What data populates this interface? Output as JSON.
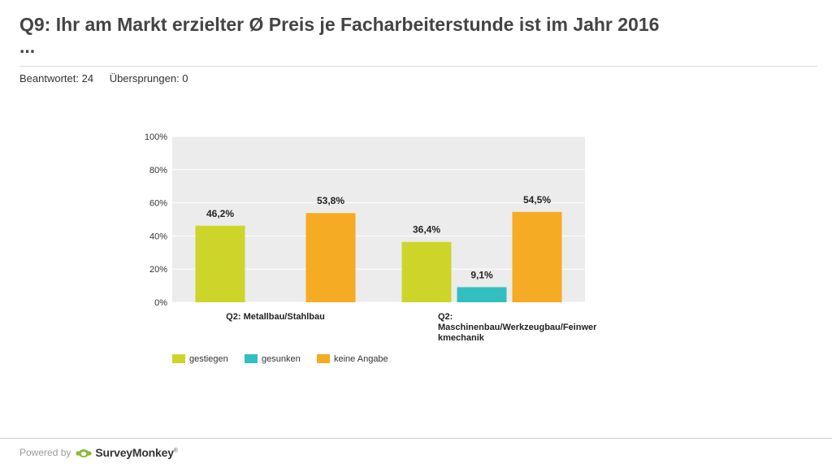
{
  "header": {
    "title": "Q9: Ihr am Markt erzielter Ø Preis je Facharbeiterstunde ist im Jahr 2016",
    "title_ellipsis": "...",
    "answered": "Beantwortet: 24",
    "skipped": "Übersprungen: 0"
  },
  "colors": {
    "gestiegen": "#cdd52b",
    "gesunken": "#33bfbf",
    "keine_angabe": "#f5ab23",
    "plot_bg": "#ececec",
    "grid": "#ffffff"
  },
  "chart_data": {
    "type": "bar",
    "title": "",
    "xlabel": "",
    "ylabel": "",
    "ylim": [
      0,
      100
    ],
    "yticks": [
      "0%",
      "20%",
      "40%",
      "60%",
      "80%",
      "100%"
    ],
    "grid": true,
    "legend_position": "bottom",
    "categories": [
      [
        "Q2: Metallbau/Stahlbau"
      ],
      [
        "Q2:",
        "Maschinenbau/Werkzeugbau/Feinwer",
        "kmechanik"
      ]
    ],
    "series": [
      {
        "name": "gestiegen",
        "values": [
          46.2,
          36.4
        ],
        "labels": [
          "46,2%",
          "36,4%"
        ]
      },
      {
        "name": "gesunken",
        "values": [
          0,
          9.1
        ],
        "labels": [
          "",
          "9,1%"
        ]
      },
      {
        "name": "keine Angabe",
        "values": [
          53.8,
          54.5
        ],
        "labels": [
          "53,8%",
          "54,5%"
        ]
      }
    ]
  },
  "footer": {
    "powered_by": "Powered by",
    "brand": "SurveyMonkey",
    "trademark": "®"
  }
}
